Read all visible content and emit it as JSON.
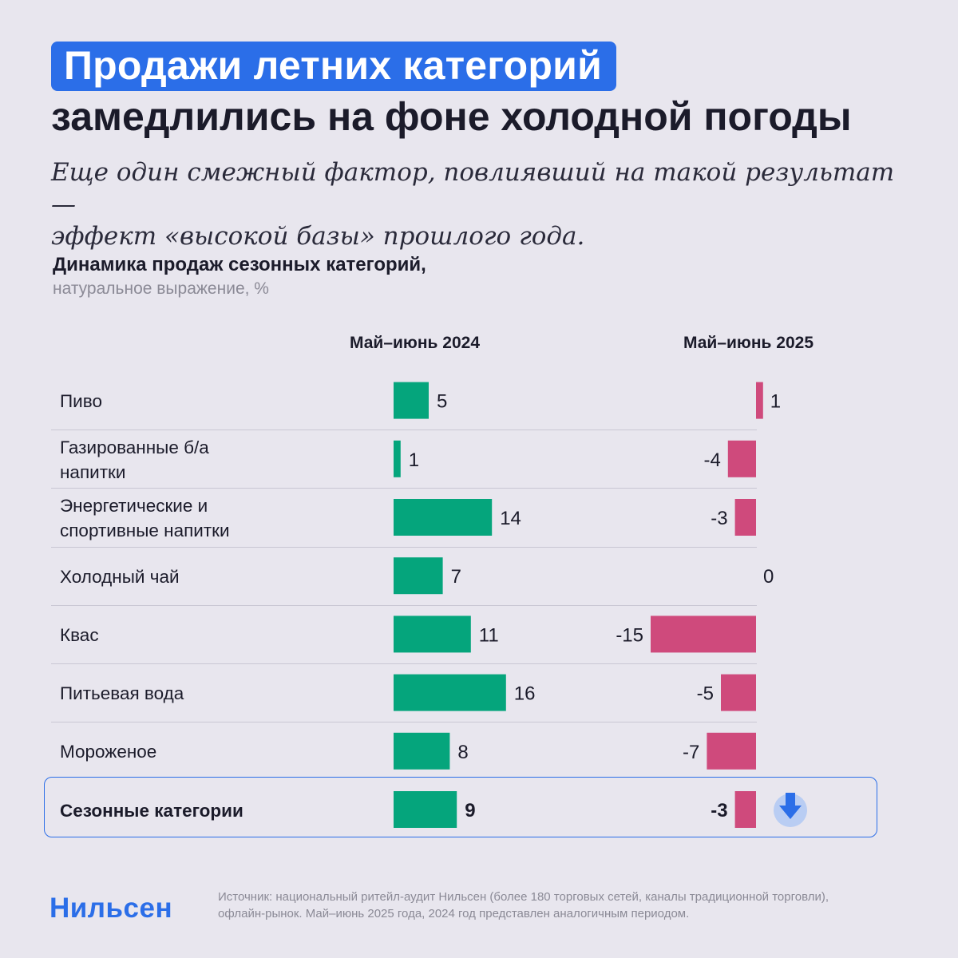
{
  "header": {
    "title_highlight": "Продажи летних категорий",
    "title_rest": "замедлились на фоне холодной погоды",
    "subtitle_line1": "Еще один смежный фактор, повлиявший на такой результат —",
    "subtitle_line2": "эффект «высокой базы» прошлого года."
  },
  "chart_data": {
    "type": "bar",
    "title": "Динамика продаж сезонных категорий,",
    "subtitle": "натуральное выражение, %",
    "categories": [
      "Пиво",
      "Газированные б/а напитки",
      "Энергетические и спортивные напитки",
      "Холодный чай",
      "Квас",
      "Питьевая вода",
      "Мороженое",
      "Сезонные категории"
    ],
    "category_lines": [
      [
        "Пиво"
      ],
      [
        "Газированные б/а",
        "напитки"
      ],
      [
        "Энергетические и",
        "спортивные напитки"
      ],
      [
        "Холодный чай"
      ],
      [
        "Квас"
      ],
      [
        "Питьевая вода"
      ],
      [
        "Мороженое"
      ],
      [
        "Сезонные категории"
      ]
    ],
    "series": [
      {
        "name": "Май–июнь 2024",
        "values": [
          5,
          1,
          14,
          7,
          11,
          16,
          8,
          9
        ],
        "color": "#05a57c"
      },
      {
        "name": "Май–июнь 2025",
        "values": [
          1,
          -4,
          -3,
          0,
          -15,
          -5,
          -7,
          -3
        ],
        "color": "#cf4a7c"
      }
    ],
    "highlight_category": "Сезонные категории",
    "xlabel": "",
    "ylabel": ""
  },
  "footer": {
    "logo": "Нильсен",
    "source_line1": "Источник: национальный ритейл-аудит Нильсен (более 180 торговых сетей, каналы традиционной торговли),",
    "source_line2": "офлайн-рынок. Май–июнь 2025 года, 2024 год представлен аналогичным периодом."
  },
  "icons": {
    "total_indicator": "arrow-down-icon"
  },
  "colors": {
    "accent": "#2b6ee8",
    "positive": "#05a57c",
    "negative": "#cf4a7c",
    "background": "#e8e6ee"
  }
}
